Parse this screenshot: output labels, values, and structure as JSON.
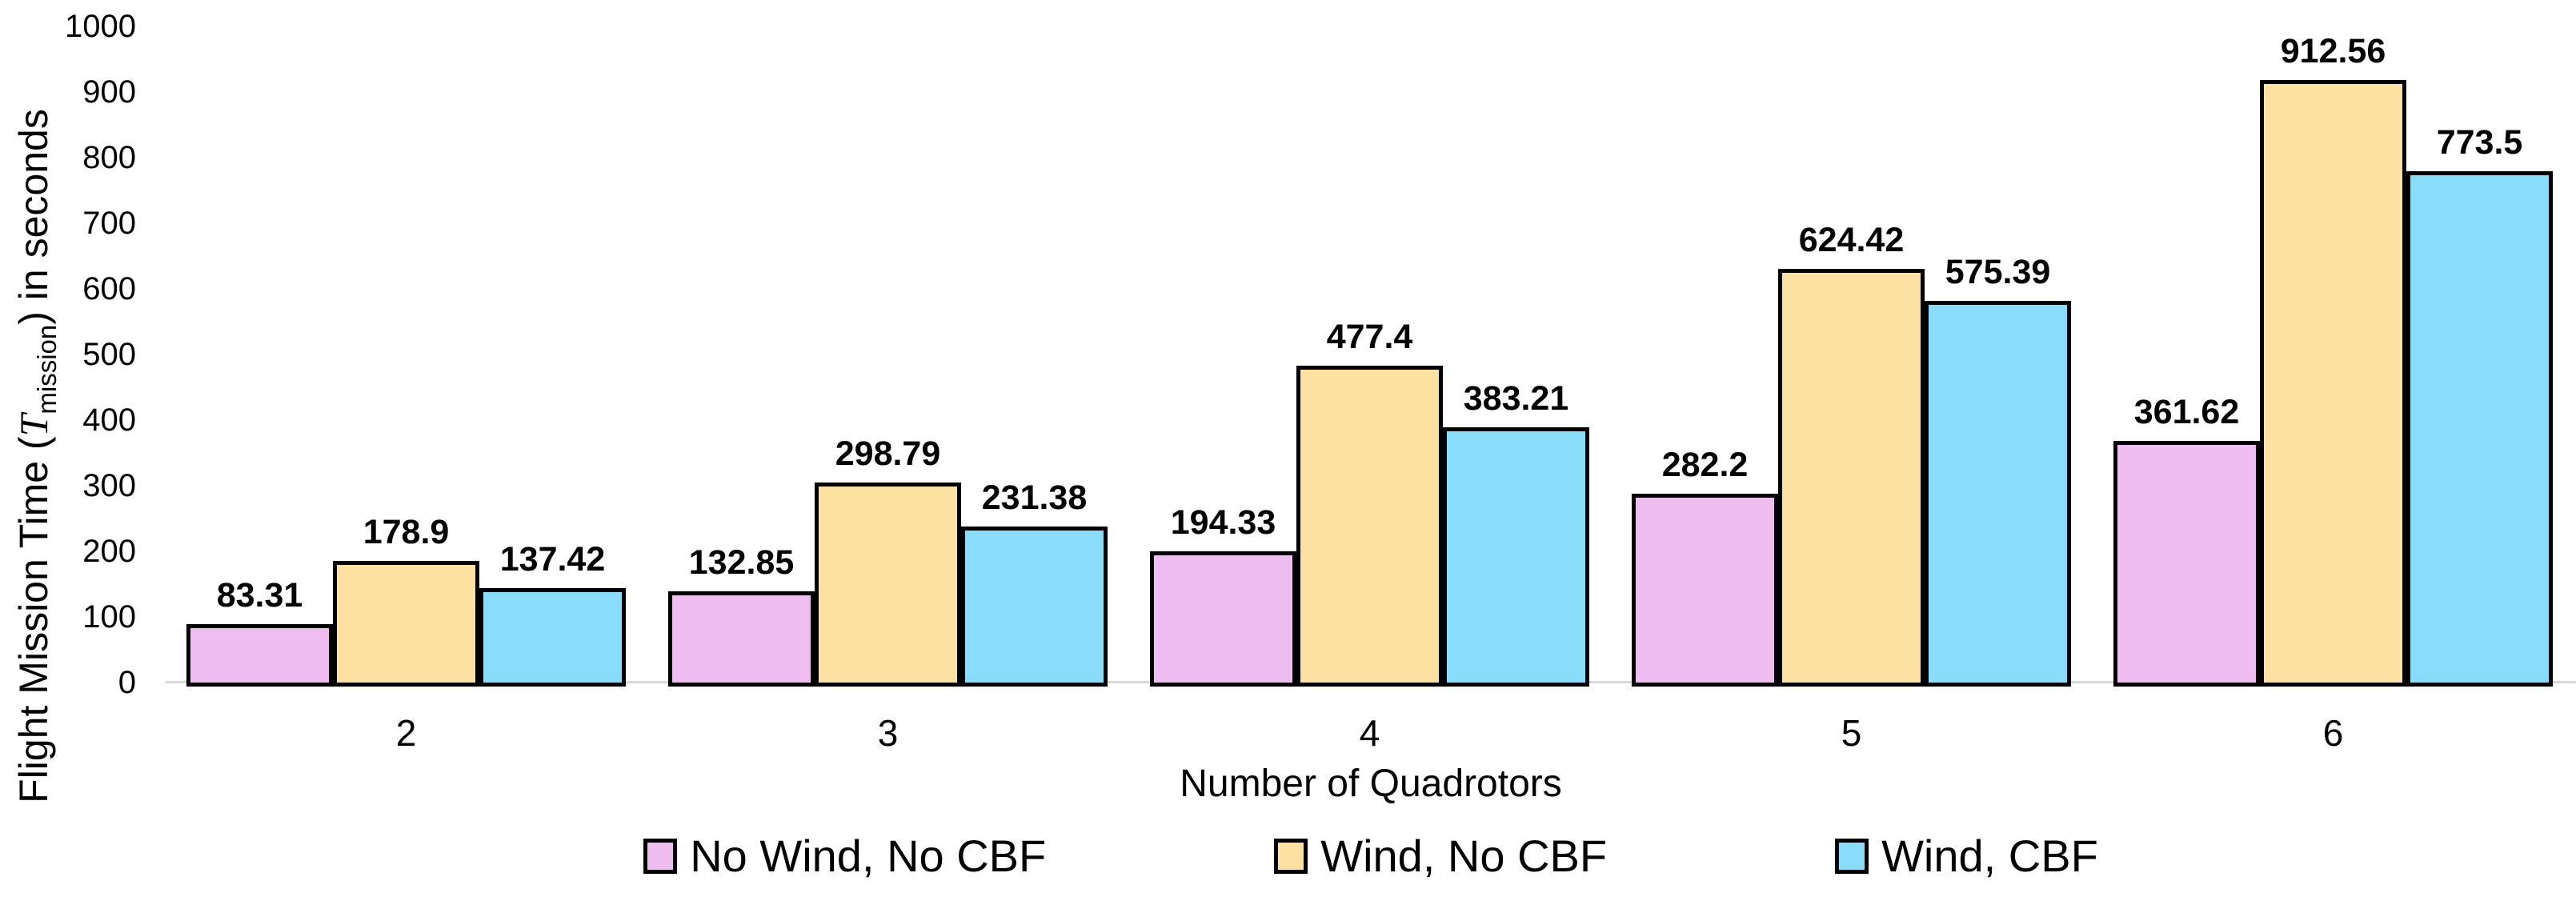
{
  "chart_data": {
    "type": "bar",
    "title": "",
    "xlabel": "Number of Quadrotors",
    "ylabel": "Flight Mission Time (T_mission) in seconds",
    "ylabel_parts": {
      "pre": "Flight Mission Time (",
      "symbol": "T",
      "sub": "mission",
      "post": ") in seconds"
    },
    "categories": [
      "2",
      "3",
      "4",
      "5",
      "6"
    ],
    "series": [
      {
        "name": "No Wind, No CBF",
        "color": "#F0BDF0",
        "values": [
          83.31,
          132.85,
          194.33,
          282.2,
          361.62
        ],
        "labels": [
          "83.31",
          "132.85",
          "194.33",
          "282.2",
          "361.62"
        ]
      },
      {
        "name": "Wind, No CBF",
        "color": "#FDE1A3",
        "values": [
          178.9,
          298.79,
          477.4,
          624.42,
          912.56
        ],
        "labels": [
          "178.9",
          "298.79",
          "477.4",
          "624.42",
          "912.56"
        ]
      },
      {
        "name": "Wind, CBF",
        "color": "#8ADCFB",
        "values": [
          137.42,
          231.38,
          383.21,
          575.39,
          773.5
        ],
        "labels": [
          "137.42",
          "231.38",
          "383.21",
          "575.39",
          "773.5"
        ]
      }
    ],
    "y_ticks": [
      0,
      100,
      200,
      300,
      400,
      500,
      600,
      700,
      800,
      900,
      1000
    ],
    "y_tick_labels": [
      "0",
      "100",
      "200",
      "300",
      "400",
      "500",
      "600",
      "700",
      "800",
      "900",
      "1000"
    ],
    "ylim": [
      0,
      1000
    ],
    "grid": false,
    "data_labels": true,
    "legend_position": "bottom",
    "bar_border_color": "#000000",
    "axis_line_color": "#D8D8D8",
    "text_color": "#000000",
    "background_color": "#FFFFFF"
  }
}
